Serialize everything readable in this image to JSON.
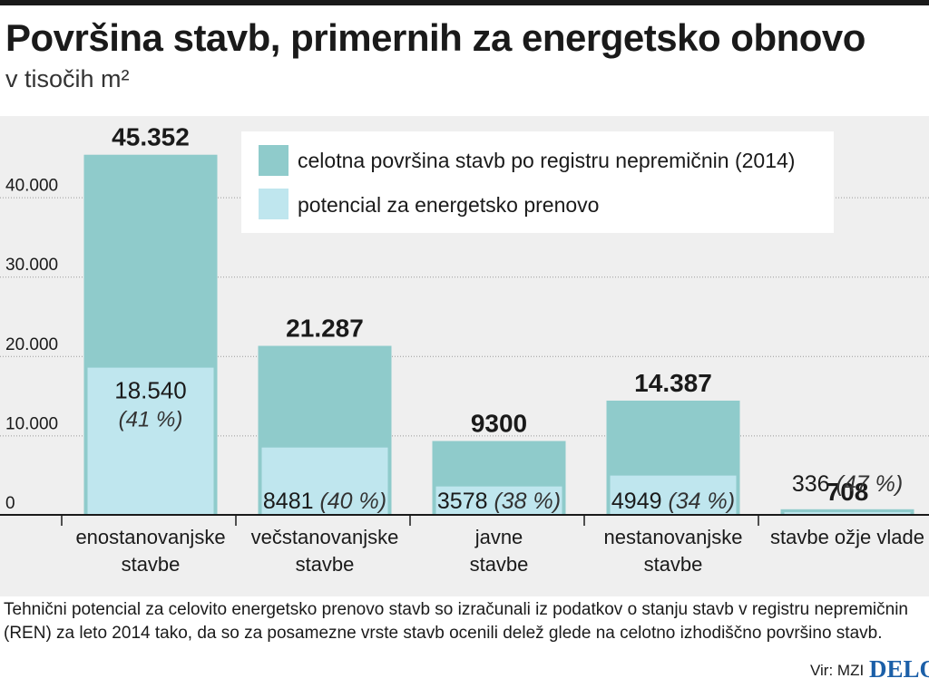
{
  "header": {
    "title": "Površina stavb, primernih za energetsko obnovo",
    "subtitle": "v tisočih m²"
  },
  "colors": {
    "total": "#8fcbcb",
    "potential": "#bfe6ee",
    "background": "#efefef",
    "brand": "#1b5fa8"
  },
  "chart_data": {
    "type": "bar",
    "ylim": [
      0,
      50000
    ],
    "yticks": [
      0,
      10000,
      20000,
      30000,
      40000
    ],
    "ytick_labels": [
      "0",
      "10.000",
      "20.000",
      "30.000",
      "40.000"
    ],
    "grid": true,
    "legend_position": "top-right",
    "categories": [
      [
        "enostanovanjske",
        "stavbe"
      ],
      [
        "večstanovanjske",
        "stavbe"
      ],
      [
        "javne",
        "stavbe"
      ],
      [
        "nestanovanjske",
        "stavbe"
      ],
      [
        "stavbe ožje vlade"
      ]
    ],
    "series": [
      {
        "name": "celotna površina stavb po registru nepremičnin (2014)",
        "values": [
          45352,
          21287,
          9300,
          14387,
          708
        ],
        "labels": [
          "45.352",
          "21.287",
          "9300",
          "14.387",
          "708"
        ]
      },
      {
        "name": "potencial za energetsko prenovo",
        "values": [
          18540,
          8481,
          3578,
          4949,
          336
        ],
        "labels": [
          "18.540",
          "8481",
          "3578",
          "4949",
          "336"
        ],
        "shares": [
          "(41 %)",
          "(40 %)",
          "(38 %)",
          "(34 %)",
          "(47 %)"
        ]
      }
    ]
  },
  "footer": {
    "note": "Tehnični potencial za celovito energetsko prenovo stavb so izračunali iz podatkov o stanju stavb v registru nepremičnin (REN) za leto 2014 tako, da so za posamezne vrste stavb ocenili delež glede na celotno izhodiščno površino stavb.",
    "source": "Vir: MZI",
    "brand": "DELO"
  }
}
